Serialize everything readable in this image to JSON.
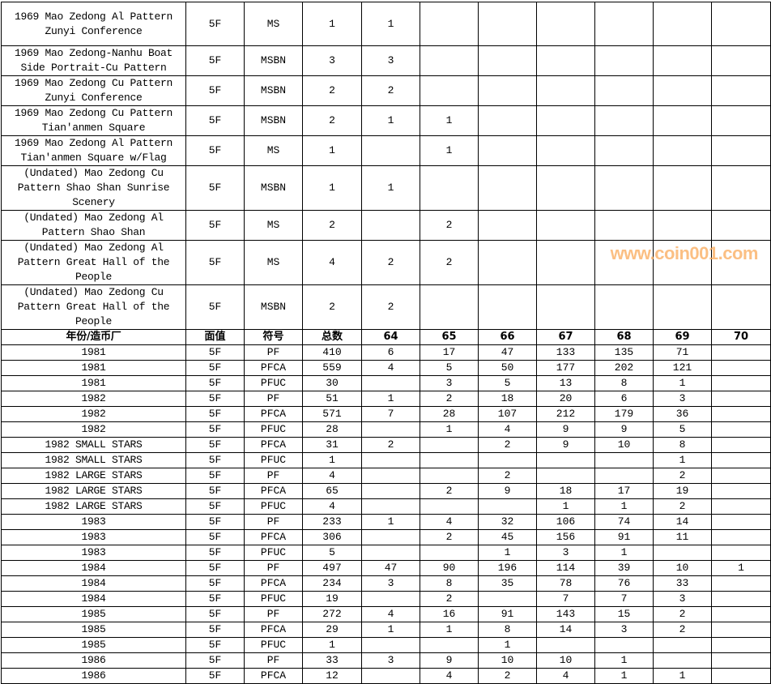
{
  "header": [
    "年份/造币厂",
    "面值",
    "符号",
    "总数",
    "64",
    "65",
    "66",
    "67",
    "68",
    "69",
    "70"
  ],
  "top_rows": [
    {
      "lines": 3,
      "cells": [
        "1969 Mao Zedong Al Pattern Zunyi Conference",
        "5F",
        "MS",
        "1",
        "1",
        "",
        "",
        "",
        "",
        "",
        ""
      ]
    },
    {
      "lines": 2,
      "cells": [
        "1969 Mao Zedong-Nanhu Boat Side Portrait-Cu Pattern",
        "5F",
        "MSBN",
        "3",
        "3",
        "",
        "",
        "",
        "",
        "",
        ""
      ]
    },
    {
      "lines": 2,
      "cells": [
        "1969 Mao Zedong Cu Pattern Zunyi Conference",
        "5F",
        "MSBN",
        "2",
        "2",
        "",
        "",
        "",
        "",
        "",
        ""
      ]
    },
    {
      "lines": 2,
      "cells": [
        "1969 Mao Zedong Cu Pattern Tian'anmen Square",
        "5F",
        "MSBN",
        "2",
        "1",
        "1",
        "",
        "",
        "",
        "",
        ""
      ]
    },
    {
      "lines": 2,
      "cells": [
        "1969 Mao Zedong Al Pattern Tian'anmen Square w/Flag",
        "5F",
        "MS",
        "1",
        "",
        "1",
        "",
        "",
        "",
        "",
        ""
      ]
    },
    {
      "lines": 3,
      "cells": [
        "(Undated) Mao Zedong Cu Pattern Shao Shan Sunrise Scenery",
        "5F",
        "MSBN",
        "1",
        "1",
        "",
        "",
        "",
        "",
        "",
        ""
      ]
    },
    {
      "lines": 2,
      "cells": [
        "(Undated) Mao Zedong Al Pattern Shao Shan",
        "5F",
        "MS",
        "2",
        "",
        "2",
        "",
        "",
        "",
        "",
        ""
      ]
    },
    {
      "lines": 3,
      "cells": [
        "(Undated) Mao Zedong Al Pattern Great Hall of the People",
        "5F",
        "MS",
        "4",
        "2",
        "2",
        "",
        "",
        "",
        "",
        ""
      ]
    },
    {
      "lines": 3,
      "cells": [
        "(Undated) Mao Zedong Cu Pattern Great Hall of the People",
        "5F",
        "MSBN",
        "2",
        "2",
        "",
        "",
        "",
        "",
        "",
        ""
      ]
    }
  ],
  "rows": [
    [
      "1981",
      "5F",
      "PF",
      "410",
      "6",
      "17",
      "47",
      "133",
      "135",
      "71",
      ""
    ],
    [
      "1981",
      "5F",
      "PFCA",
      "559",
      "4",
      "5",
      "50",
      "177",
      "202",
      "121",
      ""
    ],
    [
      "1981",
      "5F",
      "PFUC",
      "30",
      "",
      "3",
      "5",
      "13",
      "8",
      "1",
      ""
    ],
    [
      "1982",
      "5F",
      "PF",
      "51",
      "1",
      "2",
      "18",
      "20",
      "6",
      "3",
      ""
    ],
    [
      "1982",
      "5F",
      "PFCA",
      "571",
      "7",
      "28",
      "107",
      "212",
      "179",
      "36",
      ""
    ],
    [
      "1982",
      "5F",
      "PFUC",
      "28",
      "",
      "1",
      "4",
      "9",
      "9",
      "5",
      ""
    ],
    [
      "1982 SMALL STARS",
      "5F",
      "PFCA",
      "31",
      "2",
      "",
      "2",
      "9",
      "10",
      "8",
      ""
    ],
    [
      "1982 SMALL STARS",
      "5F",
      "PFUC",
      "1",
      "",
      "",
      "",
      "",
      "",
      "1",
      ""
    ],
    [
      "1982 LARGE STARS",
      "5F",
      "PF",
      "4",
      "",
      "",
      "2",
      "",
      "",
      "2",
      ""
    ],
    [
      "1982 LARGE STARS",
      "5F",
      "PFCA",
      "65",
      "",
      "2",
      "9",
      "18",
      "17",
      "19",
      ""
    ],
    [
      "1982 LARGE STARS",
      "5F",
      "PFUC",
      "4",
      "",
      "",
      "",
      "1",
      "1",
      "2",
      ""
    ],
    [
      "1983",
      "5F",
      "PF",
      "233",
      "1",
      "4",
      "32",
      "106",
      "74",
      "14",
      ""
    ],
    [
      "1983",
      "5F",
      "PFCA",
      "306",
      "",
      "2",
      "45",
      "156",
      "91",
      "11",
      ""
    ],
    [
      "1983",
      "5F",
      "PFUC",
      "5",
      "",
      "",
      "1",
      "3",
      "1",
      "",
      ""
    ],
    [
      "1984",
      "5F",
      "PF",
      "497",
      "47",
      "90",
      "196",
      "114",
      "39",
      "10",
      "1"
    ],
    [
      "1984",
      "5F",
      "PFCA",
      "234",
      "3",
      "8",
      "35",
      "78",
      "76",
      "33",
      ""
    ],
    [
      "1984",
      "5F",
      "PFUC",
      "19",
      "",
      "2",
      "",
      "7",
      "7",
      "3",
      ""
    ],
    [
      "1985",
      "5F",
      "PF",
      "272",
      "4",
      "16",
      "91",
      "143",
      "15",
      "2",
      ""
    ],
    [
      "1985",
      "5F",
      "PFCA",
      "29",
      "1",
      "1",
      "8",
      "14",
      "3",
      "2",
      ""
    ],
    [
      "1985",
      "5F",
      "PFUC",
      "1",
      "",
      "",
      "1",
      "",
      "",
      "",
      ""
    ],
    [
      "1986",
      "5F",
      "PF",
      "33",
      "3",
      "9",
      "10",
      "10",
      "1",
      "",
      ""
    ],
    [
      "1986",
      "5F",
      "PFCA",
      "12",
      "",
      "4",
      "2",
      "4",
      "1",
      "1",
      ""
    ]
  ],
  "watermark": "www.coin001.com"
}
